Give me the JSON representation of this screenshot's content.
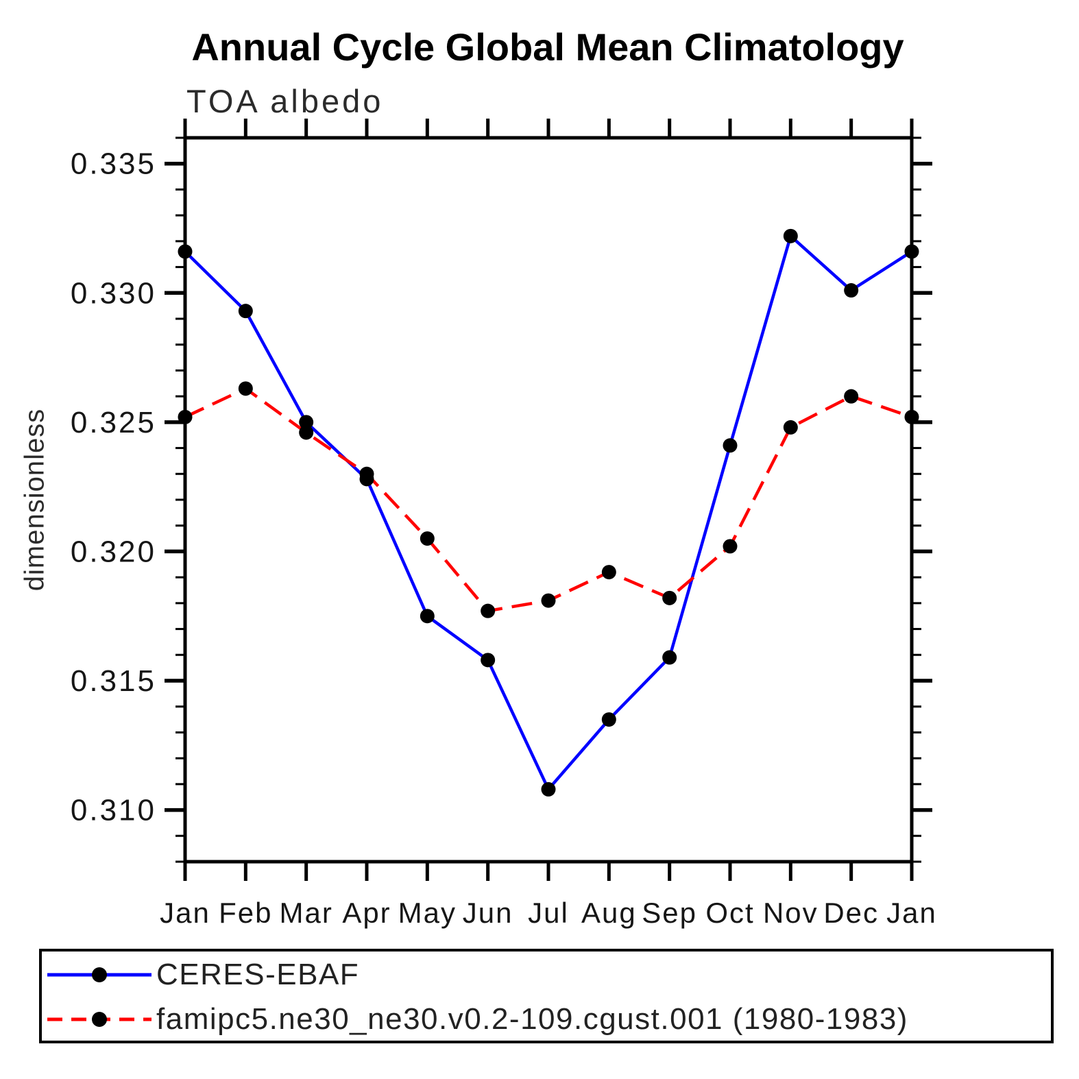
{
  "title": "Annual Cycle Global Mean Climatology",
  "subtitle": "TOA albedo",
  "ylabel": "dimensionless",
  "legend": {
    "entries": [
      {
        "label": "CERES-EBAF",
        "color": "#0000ff",
        "line_style": "solid",
        "marker_color": "#000000"
      },
      {
        "label": "famipc5.ne30_ne30.v0.2-109.cgust.001 (1980-1983)",
        "color": "#ff0000",
        "line_style": "dashed",
        "marker_color": "#000000"
      }
    ]
  },
  "chart_data": {
    "type": "line",
    "title": "Annual Cycle Global Mean Climatology",
    "subtitle": "TOA albedo",
    "xlabel": "",
    "ylabel": "dimensionless",
    "categories": [
      "Jan",
      "Feb",
      "Mar",
      "Apr",
      "May",
      "Jun",
      "Jul",
      "Aug",
      "Sep",
      "Oct",
      "Nov",
      "Dec",
      "Jan"
    ],
    "series": [
      {
        "name": "CERES-EBAF",
        "color": "#0000ff",
        "line_style": "solid",
        "marker": "circle",
        "marker_color": "#000000",
        "values": [
          0.3316,
          0.3293,
          0.325,
          0.3228,
          0.3175,
          0.3158,
          0.3108,
          0.3135,
          0.3159,
          0.3241,
          0.3322,
          0.3301,
          0.3316
        ]
      },
      {
        "name": "famipc5.ne30_ne30.v0.2-109.cgust.001 (1980-1983)",
        "color": "#ff0000",
        "line_style": "dashed",
        "marker": "circle",
        "marker_color": "#000000",
        "values": [
          0.3252,
          0.3263,
          0.3246,
          0.323,
          0.3205,
          0.3177,
          0.3181,
          0.3192,
          0.3182,
          0.3202,
          0.3248,
          0.326,
          0.3252
        ]
      }
    ],
    "ylim": [
      0.308,
      0.336
    ],
    "y_major_ticks": [
      0.31,
      0.315,
      0.32,
      0.325,
      0.33,
      0.335
    ],
    "y_major_tick_labels": [
      "0.310",
      "0.315",
      "0.320",
      "0.325",
      "0.330",
      "0.335"
    ],
    "y_minor_step": 0.001,
    "grid": false,
    "legend_position": "bottom"
  }
}
